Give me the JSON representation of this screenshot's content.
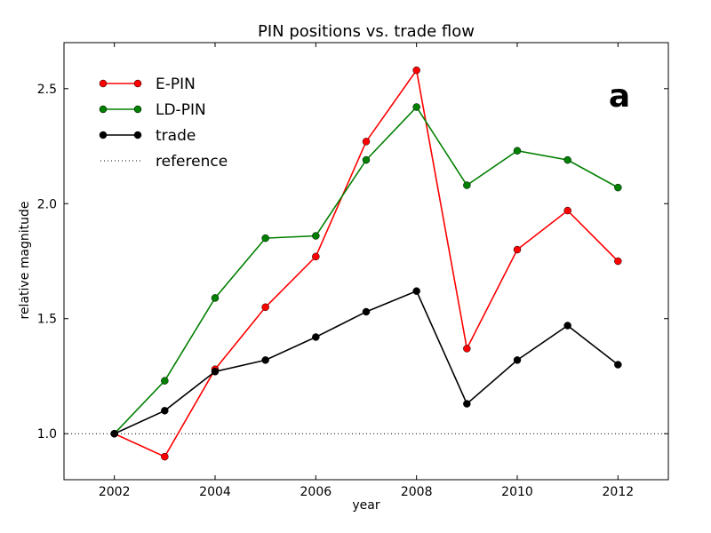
{
  "chart_data": {
    "type": "line",
    "title": "PIN positions vs. trade flow",
    "xlabel": "year",
    "ylabel": "relative magnitude",
    "panel_label": "a",
    "xlim": [
      2001,
      2013
    ],
    "ylim": [
      0.8,
      2.7
    ],
    "xticks": [
      2002,
      2004,
      2006,
      2008,
      2010,
      2012
    ],
    "xtick_labels": [
      "2002",
      "2004",
      "2006",
      "2008",
      "2010",
      "2012"
    ],
    "yticks": [
      1.0,
      1.5,
      2.0,
      2.5
    ],
    "ytick_labels": [
      "1.0",
      "1.5",
      "2.0",
      "2.5"
    ],
    "grid": false,
    "legend_position": "top-left",
    "x": [
      2002,
      2003,
      2004,
      2005,
      2006,
      2007,
      2008,
      2009,
      2010,
      2011,
      2012
    ],
    "series": [
      {
        "name": "E-PIN",
        "color": "#ff0000",
        "values": [
          1.0,
          0.9,
          1.28,
          1.55,
          1.77,
          2.27,
          2.58,
          1.37,
          1.8,
          1.97,
          1.75
        ]
      },
      {
        "name": "LD-PIN",
        "color": "#008000",
        "values": [
          1.0,
          1.23,
          1.59,
          1.85,
          1.86,
          2.19,
          2.42,
          2.08,
          2.23,
          2.19,
          2.07
        ]
      },
      {
        "name": "trade",
        "color": "#000000",
        "values": [
          1.0,
          1.1,
          1.27,
          1.32,
          1.42,
          1.53,
          1.62,
          1.13,
          1.32,
          1.47,
          1.3
        ]
      }
    ],
    "reference": {
      "name": "reference",
      "y": 1.0,
      "style": "dotted",
      "color": "#000000"
    }
  }
}
